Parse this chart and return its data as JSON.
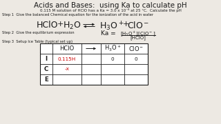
{
  "title": "Acids and Bases:  using Ka to calculate pH",
  "subtitle": "0.115 M solution of HClO has a Ka = 3.0 x 10⁻⁸ at 25 °C.  Calculate the pH",
  "step1": "Step 1  Give the balanced Chemical equation for the ionization of the acid in water",
  "step2": "Step 2  Give the equilibrium expression",
  "step3": "Step 3  Setup Ice Table (typical set up)",
  "bg_color": "#ede9e3",
  "text_color": "#1a1a1a",
  "red_color": "#cc0000",
  "title_fontsize": 7.5,
  "small_fontsize": 4.0,
  "step_fontsize": 3.8,
  "eq_fontsize": 9.0,
  "ka_fontsize": 6.5,
  "table_header_fontsize": 6.0,
  "table_cell_fontsize": 5.2
}
